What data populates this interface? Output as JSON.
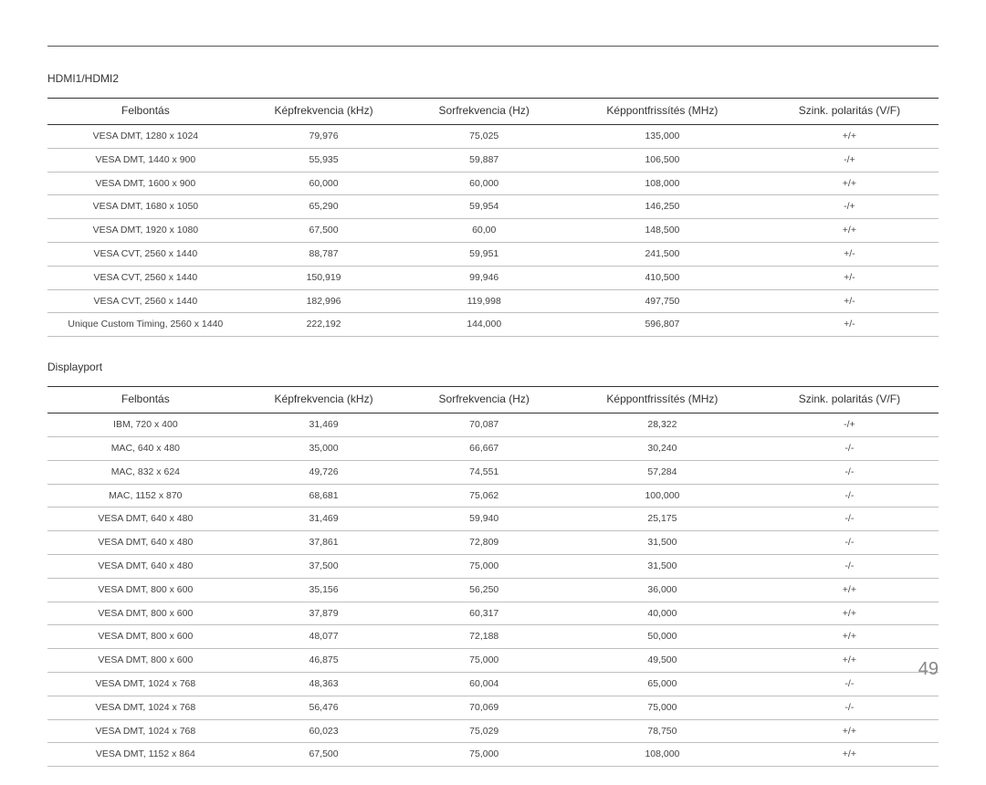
{
  "page_number": "49",
  "colors": {
    "text": "#333333",
    "row_border": "#bfbfbf",
    "header_border": "#333333",
    "page_num": "#888888",
    "background": "#ffffff"
  },
  "sections": [
    {
      "title": "HDMI1/HDMI2",
      "columns": [
        "Felbontás",
        "Képfrekvencia (kHz)",
        "Sorfrekvencia (Hz)",
        "Képpontfrissítés (MHz)",
        "Szink. polaritás (V/F)"
      ],
      "rows": [
        [
          "VESA DMT, 1280 x 1024",
          "79,976",
          "75,025",
          "135,000",
          "+/+"
        ],
        [
          "VESA DMT, 1440 x 900",
          "55,935",
          "59,887",
          "106,500",
          "-/+"
        ],
        [
          "VESA DMT, 1600 x 900",
          "60,000",
          "60,000",
          "108,000",
          "+/+"
        ],
        [
          "VESA DMT, 1680 x 1050",
          "65,290",
          "59,954",
          "146,250",
          "-/+"
        ],
        [
          "VESA DMT, 1920 x 1080",
          "67,500",
          "60,00",
          "148,500",
          "+/+"
        ],
        [
          "VESA CVT, 2560 x 1440",
          "88,787",
          "59,951",
          "241,500",
          "+/-"
        ],
        [
          "VESA CVT, 2560 x 1440",
          "150,919",
          "99,946",
          "410,500",
          "+/-"
        ],
        [
          "VESA CVT, 2560 x 1440",
          "182,996",
          "119,998",
          "497,750",
          "+/-"
        ],
        [
          "Unique Custom Timing, 2560 x 1440",
          "222,192",
          "144,000",
          "596,807",
          "+/-"
        ]
      ]
    },
    {
      "title": "Displayport",
      "columns": [
        "Felbontás",
        "Képfrekvencia (kHz)",
        "Sorfrekvencia (Hz)",
        "Képpontfrissítés (MHz)",
        "Szink. polaritás (V/F)"
      ],
      "rows": [
        [
          "IBM, 720 x 400",
          "31,469",
          "70,087",
          "28,322",
          "-/+"
        ],
        [
          "MAC, 640 x 480",
          "35,000",
          "66,667",
          "30,240",
          "-/-"
        ],
        [
          "MAC, 832 x 624",
          "49,726",
          "74,551",
          "57,284",
          "-/-"
        ],
        [
          "MAC, 1152 x 870",
          "68,681",
          "75,062",
          "100,000",
          "-/-"
        ],
        [
          "VESA DMT, 640 x 480",
          "31,469",
          "59,940",
          "25,175",
          "-/-"
        ],
        [
          "VESA DMT, 640 x 480",
          "37,861",
          "72,809",
          "31,500",
          "-/-"
        ],
        [
          "VESA DMT, 640 x 480",
          "37,500",
          "75,000",
          "31,500",
          "-/-"
        ],
        [
          "VESA DMT, 800 x 600",
          "35,156",
          "56,250",
          "36,000",
          "+/+"
        ],
        [
          "VESA DMT, 800 x 600",
          "37,879",
          "60,317",
          "40,000",
          "+/+"
        ],
        [
          "VESA DMT, 800 x 600",
          "48,077",
          "72,188",
          "50,000",
          "+/+"
        ],
        [
          "VESA DMT, 800 x 600",
          "46,875",
          "75,000",
          "49,500",
          "+/+"
        ],
        [
          "VESA DMT, 1024 x 768",
          "48,363",
          "60,004",
          "65,000",
          "-/-"
        ],
        [
          "VESA DMT, 1024 x 768",
          "56,476",
          "70,069",
          "75,000",
          "-/-"
        ],
        [
          "VESA DMT, 1024 x 768",
          "60,023",
          "75,029",
          "78,750",
          "+/+"
        ],
        [
          "VESA DMT, 1152 x 864",
          "67,500",
          "75,000",
          "108,000",
          "+/+"
        ]
      ]
    }
  ]
}
